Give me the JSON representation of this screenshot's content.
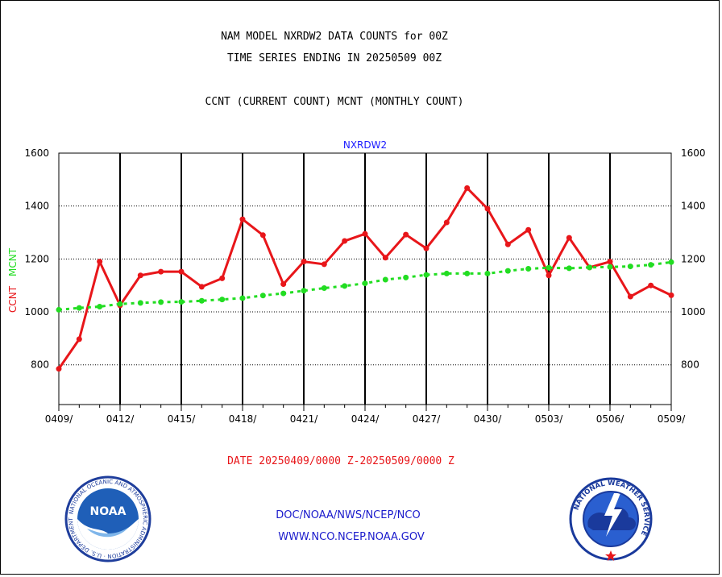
{
  "header": {
    "title_line1": "NAM MODEL NXRDW2 DATA COUNTS for 00Z",
    "title_line2": "TIME SERIES ENDING IN 20250509 00Z",
    "subtitle": "CCNT (CURRENT COUNT) MCNT (MONTHLY COUNT)"
  },
  "footer": {
    "date_range": "DATE 20250409/0000 Z-20250509/0000 Z",
    "org_line": "DOC/NOAA/NWS/NCEP/NCO",
    "url_line": "WWW.NCO.NCEP.NOAA.GOV"
  },
  "logos": {
    "noaa_text": "NOAA",
    "noaa_ring": "NATIONAL OCEANIC AND ATMOSPHERIC ADMINISTRATION · U.S. DEPARTMENT OF COMMERCE",
    "nws_ring": "NATIONAL WEATHER SERVICE"
  },
  "colors": {
    "ccnt": "#e8161a",
    "mcnt": "#22dd22",
    "panel_title": "#1a1aff",
    "date_range": "#e8161a",
    "footer_text": "#1a1acc"
  },
  "chart_data": {
    "type": "line",
    "panel_title": "NXRDW2",
    "ylabel_ccnt": "CCNT",
    "ylabel_mcnt": "MCNT",
    "ylim": [
      650,
      1600
    ],
    "yticks": [
      800,
      1000,
      1200,
      1400,
      1600
    ],
    "x": [
      "0409",
      "0410",
      "0411",
      "0412",
      "0413",
      "0414",
      "0415",
      "0416",
      "0417",
      "0418",
      "0419",
      "0420",
      "0421",
      "0422",
      "0423",
      "0424",
      "0425",
      "0426",
      "0427",
      "0428",
      "0429",
      "0430",
      "0501",
      "0502",
      "0503",
      "0504",
      "0505",
      "0506",
      "0507",
      "0508",
      "0509"
    ],
    "xtick_labels": [
      "0409/",
      "0412/",
      "0415/",
      "0418/",
      "0421/",
      "0424/",
      "0427/",
      "0430/",
      "0503/",
      "0506/",
      "0509/"
    ],
    "xtick_index": [
      0,
      3,
      6,
      9,
      12,
      15,
      18,
      21,
      24,
      27,
      30
    ],
    "grid": true,
    "series": [
      {
        "name": "CCNT",
        "values": [
          785,
          897,
          1190,
          1025,
          1138,
          1152,
          1152,
          1095,
          1127,
          1350,
          1290,
          1105,
          1190,
          1180,
          1268,
          1295,
          1205,
          1292,
          1240,
          1338,
          1468,
          1390,
          1255,
          1310,
          1138,
          1280,
          1168,
          1190,
          1058,
          1100,
          1063
        ]
      },
      {
        "name": "MCNT",
        "values": [
          1008,
          1015,
          1020,
          1030,
          1034,
          1037,
          1038,
          1042,
          1047,
          1052,
          1062,
          1070,
          1080,
          1090,
          1098,
          1108,
          1122,
          1130,
          1140,
          1145,
          1145,
          1145,
          1155,
          1163,
          1167,
          1165,
          1168,
          1170,
          1172,
          1178,
          1188
        ]
      }
    ]
  }
}
